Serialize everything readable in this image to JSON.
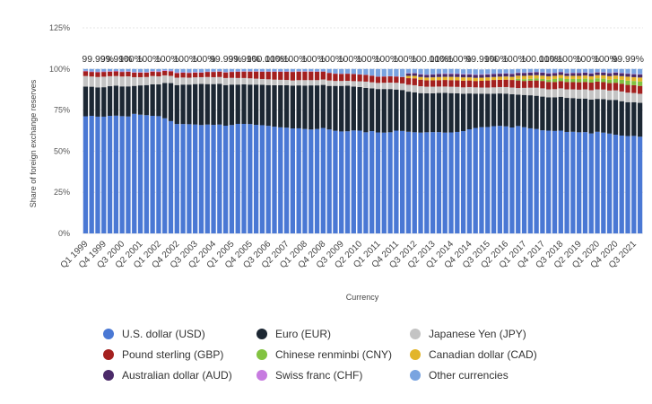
{
  "chart_data": {
    "type": "bar",
    "stacked": true,
    "xlabel": "Currency",
    "ylabel": "Share of foreign exchange reserves",
    "ylim": [
      0,
      125
    ],
    "yticks": [
      "0%",
      "25%",
      "50%",
      "75%",
      "100%",
      "125%"
    ],
    "grid": true,
    "legend_position": "bottom",
    "categories": [
      "Q1 1999",
      "Q2 1999",
      "Q3 1999",
      "Q4 1999",
      "Q1 2000",
      "Q2 2000",
      "Q3 2000",
      "Q4 2000",
      "Q1 2001",
      "Q2 2001",
      "Q3 2001",
      "Q4 2001",
      "Q1 2002",
      "Q2 2002",
      "Q3 2002",
      "Q4 2002",
      "Q1 2003",
      "Q2 2003",
      "Q3 2003",
      "Q4 2003",
      "Q1 2004",
      "Q2 2004",
      "Q3 2004",
      "Q4 2004",
      "Q1 2005",
      "Q2 2005",
      "Q3 2005",
      "Q4 2005",
      "Q1 2006",
      "Q2 2006",
      "Q3 2006",
      "Q4 2006",
      "Q1 2007",
      "Q2 2007",
      "Q3 2007",
      "Q4 2007",
      "Q1 2008",
      "Q2 2008",
      "Q3 2008",
      "Q4 2008",
      "Q1 2009",
      "Q2 2009",
      "Q3 2009",
      "Q4 2009",
      "Q1 2010",
      "Q2 2010",
      "Q3 2010",
      "Q4 2010",
      "Q1 2011",
      "Q2 2011",
      "Q3 2011",
      "Q4 2011",
      "Q1 2012",
      "Q2 2012",
      "Q3 2012",
      "Q4 2012",
      "Q1 2013",
      "Q2 2013",
      "Q3 2013",
      "Q4 2013",
      "Q1 2014",
      "Q2 2014",
      "Q3 2014",
      "Q4 2014",
      "Q1 2015",
      "Q2 2015",
      "Q3 2015",
      "Q4 2015",
      "Q1 2016",
      "Q2 2016",
      "Q3 2016",
      "Q4 2016",
      "Q1 2017",
      "Q2 2017",
      "Q3 2017",
      "Q4 2017",
      "Q1 2018",
      "Q2 2018",
      "Q3 2018",
      "Q4 2018",
      "Q1 2019",
      "Q2 2019",
      "Q3 2019",
      "Q4 2019",
      "Q1 2020",
      "Q2 2020",
      "Q3 2020",
      "Q4 2020",
      "Q1 2021",
      "Q2 2021",
      "Q3 2021",
      "Q4 2021"
    ],
    "xtick_labels": [
      "Q1 1999",
      "Q4 1999",
      "Q3 2000",
      "Q2 2001",
      "Q1 2002",
      "Q4 2002",
      "Q3 2003",
      "Q2 2004",
      "Q1 2005",
      "Q4 2005",
      "Q3 2006",
      "Q2 2007",
      "Q1 2008",
      "Q4 2008",
      "Q3 2009",
      "Q2 2010",
      "Q1 2011",
      "Q4 2011",
      "Q3 2012",
      "Q2 2013",
      "Q1 2014",
      "Q4 2014",
      "Q3 2015",
      "Q2 2016",
      "Q1 2017",
      "Q4 2017",
      "Q3 2018",
      "Q2 2019",
      "Q1 2020",
      "Q4 2020",
      "Q3 2021"
    ],
    "total_labels": [
      {
        "index": 0,
        "text": "99.99%"
      },
      {
        "index": 3,
        "text": "99.99%"
      },
      {
        "index": 6,
        "text": "100%"
      },
      {
        "index": 9,
        "text": "100%"
      },
      {
        "index": 12,
        "text": "100%"
      },
      {
        "index": 15,
        "text": "100%"
      },
      {
        "index": 18,
        "text": "100%"
      },
      {
        "index": 21,
        "text": "99.99%"
      },
      {
        "index": 24,
        "text": "99.99%"
      },
      {
        "index": 27,
        "text": "100.01%"
      },
      {
        "index": 30,
        "text": "100%"
      },
      {
        "index": 33,
        "text": "100%"
      },
      {
        "index": 36,
        "text": "100%"
      },
      {
        "index": 39,
        "text": "100%"
      },
      {
        "index": 42,
        "text": "100%"
      },
      {
        "index": 45,
        "text": "100%"
      },
      {
        "index": 48,
        "text": "100%"
      },
      {
        "index": 51,
        "text": "100%"
      },
      {
        "index": 54,
        "text": "100.01%"
      },
      {
        "index": 57,
        "text": "100%"
      },
      {
        "index": 60,
        "text": "100%"
      },
      {
        "index": 63,
        "text": "99.99%"
      },
      {
        "index": 66,
        "text": "100%"
      },
      {
        "index": 69,
        "text": "100%"
      },
      {
        "index": 72,
        "text": "100.01%"
      },
      {
        "index": 75,
        "text": "100%"
      },
      {
        "index": 78,
        "text": "100%"
      },
      {
        "index": 81,
        "text": "100%"
      },
      {
        "index": 84,
        "text": "100%"
      },
      {
        "index": 87,
        "text": "99.99%"
      }
    ],
    "series": [
      {
        "name": "U.S. dollar (USD)",
        "color": "#4a78d4",
        "values": [
          71.2,
          71.5,
          71.0,
          71.0,
          71.5,
          71.6,
          71.3,
          71.1,
          72.7,
          72.2,
          71.9,
          71.5,
          71.3,
          70.0,
          68.3,
          66.5,
          66.5,
          66.4,
          66.2,
          65.9,
          66.2,
          66.0,
          66.2,
          65.5,
          65.9,
          66.6,
          66.6,
          66.5,
          66.0,
          65.8,
          65.4,
          64.9,
          64.5,
          64.3,
          63.8,
          63.9,
          63.5,
          63.2,
          63.5,
          64.1,
          63.2,
          62.4,
          62.0,
          62.1,
          62.6,
          62.5,
          61.5,
          62.2,
          61.4,
          61.3,
          61.5,
          62.5,
          62.3,
          61.8,
          61.5,
          61.3,
          61.5,
          61.6,
          61.6,
          61.3,
          61.4,
          61.7,
          62.2,
          63.3,
          64.1,
          64.6,
          64.7,
          65.2,
          65.4,
          65.1,
          64.4,
          65.3,
          64.6,
          63.9,
          63.5,
          62.7,
          62.5,
          62.3,
          62.5,
          61.7,
          61.8,
          61.5,
          61.6,
          60.8,
          61.8,
          61.3,
          60.7,
          60.0,
          59.5,
          59.2,
          59.3,
          58.8
        ]
      },
      {
        "name": "Euro (EUR)",
        "color": "#1c2733",
        "values": [
          18.1,
          17.7,
          17.8,
          17.9,
          18.0,
          18.2,
          18.1,
          18.3,
          17.0,
          17.8,
          18.3,
          19.2,
          19.3,
          21.5,
          23.1,
          23.7,
          24.0,
          24.1,
          24.6,
          25.0,
          24.6,
          24.8,
          24.8,
          24.7,
          24.6,
          23.9,
          24.0,
          24.0,
          24.5,
          24.6,
          24.8,
          25.2,
          25.6,
          25.8,
          26.1,
          26.1,
          26.4,
          26.8,
          26.5,
          26.2,
          26.5,
          27.3,
          27.7,
          27.7,
          26.7,
          26.5,
          27.0,
          26.0,
          26.4,
          26.5,
          26.3,
          25.0,
          24.9,
          24.4,
          24.3,
          24.0,
          23.7,
          23.6,
          23.8,
          24.2,
          23.9,
          23.5,
          22.7,
          21.8,
          20.9,
          20.4,
          20.2,
          19.8,
          19.7,
          19.9,
          20.2,
          19.1,
          19.6,
          20.1,
          20.2,
          20.5,
          20.2,
          20.4,
          20.6,
          20.7,
          20.5,
          20.5,
          20.4,
          20.6,
          20.0,
          20.3,
          20.5,
          21.2,
          20.9,
          20.6,
          20.5,
          20.6
        ]
      },
      {
        "name": "Japanese Yen (JPY)",
        "color": "#c4c4c4",
        "values": [
          6.4,
          6.2,
          6.3,
          6.4,
          6.1,
          5.9,
          6.0,
          6.1,
          5.3,
          5.0,
          4.9,
          5.0,
          4.9,
          4.6,
          4.4,
          4.5,
          4.3,
          4.2,
          4.1,
          4.1,
          4.3,
          4.2,
          4.1,
          4.3,
          4.1,
          4.0,
          3.9,
          3.8,
          3.6,
          3.5,
          3.5,
          3.4,
          3.3,
          3.2,
          3.1,
          3.2,
          3.3,
          3.2,
          3.2,
          3.3,
          3.3,
          3.0,
          3.0,
          3.0,
          3.3,
          3.5,
          3.8,
          3.7,
          3.7,
          3.8,
          3.9,
          4.1,
          4.0,
          4.2,
          4.3,
          4.2,
          4.0,
          4.0,
          3.9,
          3.8,
          3.9,
          3.9,
          3.9,
          3.9,
          3.8,
          3.7,
          3.8,
          3.8,
          3.9,
          4.0,
          4.1,
          4.0,
          4.3,
          4.6,
          4.9,
          5.0,
          4.9,
          5.0,
          5.1,
          5.2,
          5.3,
          5.4,
          5.6,
          5.7,
          5.8,
          5.9,
          5.7,
          5.8,
          5.9,
          5.8,
          5.6,
          5.5
        ]
      },
      {
        "name": "Pound sterling (GBP)",
        "color": "#a4201f",
        "values": [
          2.9,
          2.8,
          2.9,
          2.9,
          2.8,
          2.8,
          2.8,
          2.8,
          2.8,
          2.8,
          2.7,
          2.7,
          2.7,
          2.7,
          2.8,
          2.8,
          2.9,
          2.9,
          2.9,
          2.8,
          3.1,
          3.2,
          3.3,
          3.4,
          3.6,
          3.8,
          3.9,
          4.1,
          4.3,
          4.4,
          4.6,
          4.8,
          4.9,
          5.0,
          5.2,
          5.2,
          5.2,
          5.2,
          5.1,
          4.8,
          4.6,
          4.4,
          4.3,
          4.3,
          4.3,
          4.1,
          4.1,
          4.0,
          3.8,
          3.8,
          3.8,
          3.8,
          3.9,
          4.0,
          4.2,
          4.0,
          3.9,
          3.9,
          3.9,
          4.0,
          4.0,
          4.0,
          4.1,
          4.0,
          3.9,
          4.1,
          4.3,
          4.5,
          4.4,
          4.5,
          4.6,
          4.6,
          4.2,
          4.3,
          4.4,
          4.5,
          4.5,
          4.4,
          4.4,
          4.5,
          4.4,
          4.5,
          4.5,
          4.6,
          4.7,
          4.5,
          4.5,
          4.6,
          4.7,
          4.7,
          4.7,
          4.8
        ]
      },
      {
        "name": "Chinese renminbi (CNY)",
        "color": "#82c341",
        "values": [
          0,
          0,
          0,
          0,
          0,
          0,
          0,
          0,
          0,
          0,
          0,
          0,
          0,
          0,
          0,
          0,
          0,
          0,
          0,
          0,
          0,
          0,
          0,
          0,
          0,
          0,
          0,
          0,
          0,
          0,
          0,
          0,
          0,
          0,
          0,
          0,
          0,
          0,
          0,
          0,
          0,
          0,
          0,
          0,
          0,
          0,
          0,
          0,
          0,
          0,
          0,
          0,
          0,
          0,
          0,
          0,
          0,
          0,
          0,
          0,
          0,
          0,
          0,
          0,
          0,
          0,
          0,
          0,
          0,
          0,
          0,
          1.0,
          1.1,
          1.1,
          1.2,
          1.2,
          1.4,
          1.8,
          1.8,
          1.8,
          1.9,
          2.0,
          2.0,
          1.9,
          2.0,
          2.1,
          2.1,
          2.3,
          2.4,
          2.6,
          2.6,
          2.7
        ]
      },
      {
        "name": "Canadian dollar (CAD)",
        "color": "#e2b52b",
        "values": [
          0,
          0,
          0,
          0,
          0,
          0,
          0,
          0,
          0,
          0,
          0,
          0,
          0,
          0,
          0,
          0,
          0,
          0,
          0,
          0,
          0,
          0,
          0,
          0,
          0,
          0,
          0,
          0,
          0,
          0,
          0,
          0,
          0,
          0,
          0,
          0,
          0,
          0,
          0,
          0,
          0,
          0,
          0,
          0,
          0,
          0,
          0,
          0,
          0,
          0,
          0,
          0,
          0,
          1.4,
          1.5,
          1.6,
          1.7,
          1.8,
          1.9,
          1.9,
          2.0,
          2.0,
          2.0,
          1.9,
          1.9,
          1.9,
          1.9,
          1.8,
          1.9,
          1.9,
          1.9,
          1.9,
          2.0,
          2.0,
          2.0,
          2.0,
          2.0,
          1.9,
          1.9,
          1.8,
          1.9,
          1.9,
          1.9,
          1.9,
          1.9,
          2.0,
          2.1,
          2.1,
          2.2,
          2.4,
          2.3,
          2.4
        ]
      },
      {
        "name": "Australian dollar (AUD)",
        "color": "#4b2a69",
        "values": [
          0,
          0,
          0,
          0,
          0,
          0,
          0,
          0,
          0,
          0,
          0,
          0,
          0,
          0,
          0,
          0,
          0,
          0,
          0,
          0,
          0,
          0,
          0,
          0,
          0,
          0,
          0,
          0,
          0,
          0,
          0,
          0,
          0,
          0,
          0,
          0,
          0,
          0,
          0,
          0,
          0,
          0,
          0,
          0,
          0,
          0,
          0,
          0,
          0,
          0,
          0,
          0,
          0,
          1.5,
          1.6,
          1.6,
          1.6,
          1.7,
          1.8,
          1.8,
          1.8,
          1.8,
          1.8,
          1.8,
          1.8,
          1.8,
          1.8,
          1.8,
          1.8,
          1.8,
          1.8,
          1.7,
          1.8,
          1.8,
          1.8,
          1.8,
          1.8,
          1.7,
          1.7,
          1.6,
          1.7,
          1.7,
          1.7,
          1.7,
          1.7,
          1.7,
          1.8,
          1.8,
          1.8,
          1.8,
          1.8,
          1.8
        ]
      },
      {
        "name": "Swiss franc (CHF)",
        "color": "#c77be0",
        "values": [
          0.3,
          0.3,
          0.3,
          0.3,
          0.3,
          0.3,
          0.3,
          0.3,
          0.3,
          0.3,
          0.3,
          0.3,
          0.4,
          0.4,
          0.4,
          0.4,
          0.3,
          0.3,
          0.3,
          0.2,
          0.2,
          0.2,
          0.2,
          0.2,
          0.2,
          0.2,
          0.2,
          0.2,
          0.2,
          0.2,
          0.2,
          0.2,
          0.2,
          0.2,
          0.2,
          0.2,
          0.2,
          0.2,
          0.2,
          0.1,
          0.1,
          0.1,
          0.1,
          0.1,
          0.1,
          0.1,
          0.1,
          0.1,
          0.1,
          0.1,
          0.1,
          0.1,
          0.1,
          0.2,
          0.2,
          0.2,
          0.2,
          0.2,
          0.2,
          0.3,
          0.3,
          0.3,
          0.3,
          0.3,
          0.3,
          0.3,
          0.3,
          0.2,
          0.2,
          0.2,
          0.2,
          0.2,
          0.2,
          0.2,
          0.2,
          0.2,
          0.2,
          0.2,
          0.2,
          0.2,
          0.2,
          0.2,
          0.2,
          0.2,
          0.2,
          0.2,
          0.2,
          0.2,
          0.2,
          0.2,
          0.2,
          0.2
        ]
      },
      {
        "name": "Other currencies",
        "color": "#7aa4e0",
        "values": [
          1.1,
          1.5,
          1.7,
          1.5,
          1.3,
          1.2,
          1.5,
          1.4,
          1.9,
          1.9,
          1.9,
          1.3,
          1.4,
          0.8,
          1.0,
          2.1,
          2.0,
          2.1,
          1.9,
          2.0,
          1.6,
          1.6,
          1.4,
          1.9,
          1.6,
          1.5,
          1.4,
          1.4,
          1.4,
          1.5,
          1.5,
          1.5,
          1.5,
          1.5,
          1.6,
          1.4,
          1.4,
          1.4,
          1.5,
          1.5,
          2.3,
          2.8,
          2.9,
          2.8,
          3.0,
          3.3,
          3.5,
          4.0,
          4.6,
          4.5,
          4.4,
          4.5,
          4.8,
          2.5,
          2.4,
          3.1,
          3.4,
          3.2,
          2.9,
          2.7,
          2.7,
          2.8,
          2.8,
          2.9,
          3.1,
          2.9,
          2.8,
          2.7,
          2.5,
          2.4,
          2.6,
          2.2,
          2.2,
          2.0,
          1.8,
          2.1,
          2.5,
          2.3,
          1.8,
          2.5,
          2.3,
          2.3,
          2.1,
          2.6,
          1.9,
          2.0,
          2.4,
          2.0,
          2.4,
          2.7,
          3.0,
          3.2
        ]
      }
    ]
  }
}
